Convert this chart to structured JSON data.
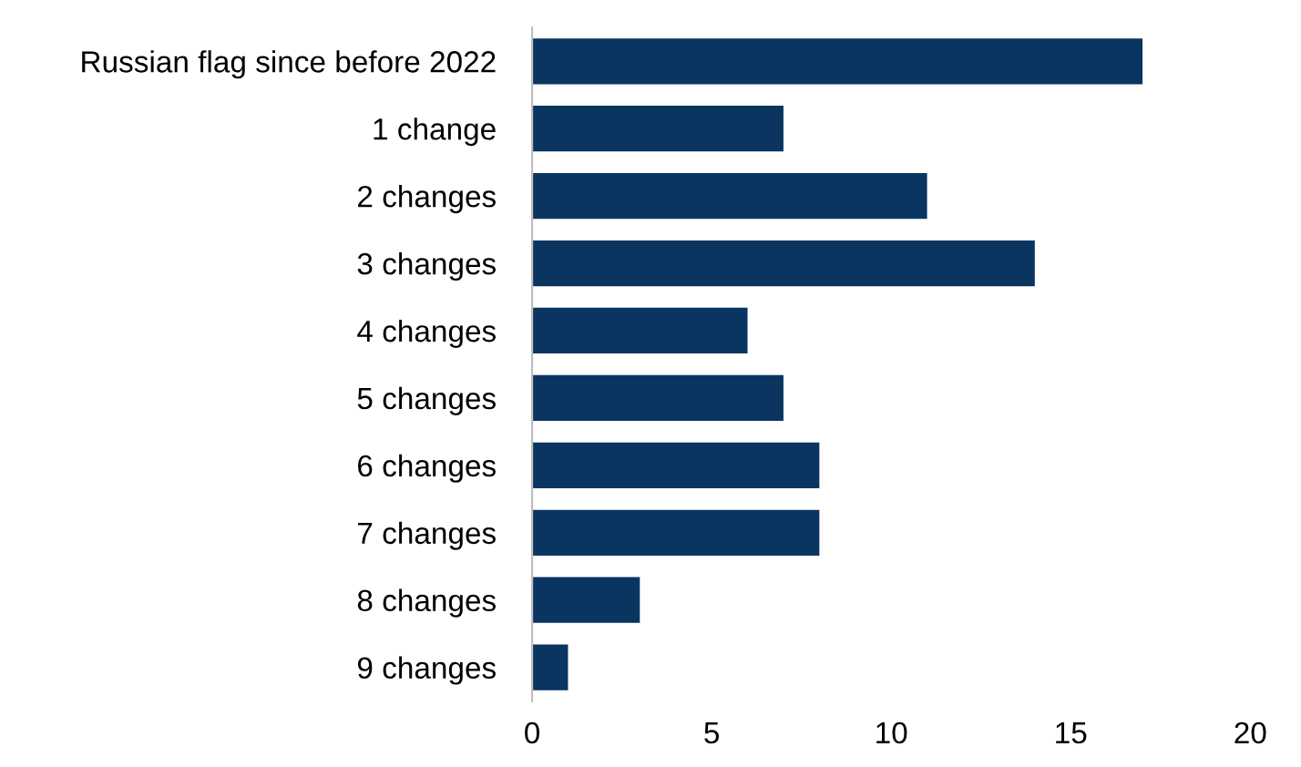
{
  "chart_data": {
    "type": "bar",
    "orientation": "horizontal",
    "categories": [
      "Russian flag since before 2022",
      "1 change",
      "2 changes",
      "3 changes",
      "4 changes",
      "5 changes",
      "6 changes",
      "7 changes",
      "8 changes",
      "9 changes"
    ],
    "values": [
      17,
      7,
      11,
      14,
      6,
      7,
      8,
      8,
      3,
      1
    ],
    "color": "#0b3561",
    "xlim": [
      0,
      20
    ],
    "xticks": [
      0,
      5,
      10,
      15,
      20
    ],
    "grid": false,
    "legend": false
  }
}
